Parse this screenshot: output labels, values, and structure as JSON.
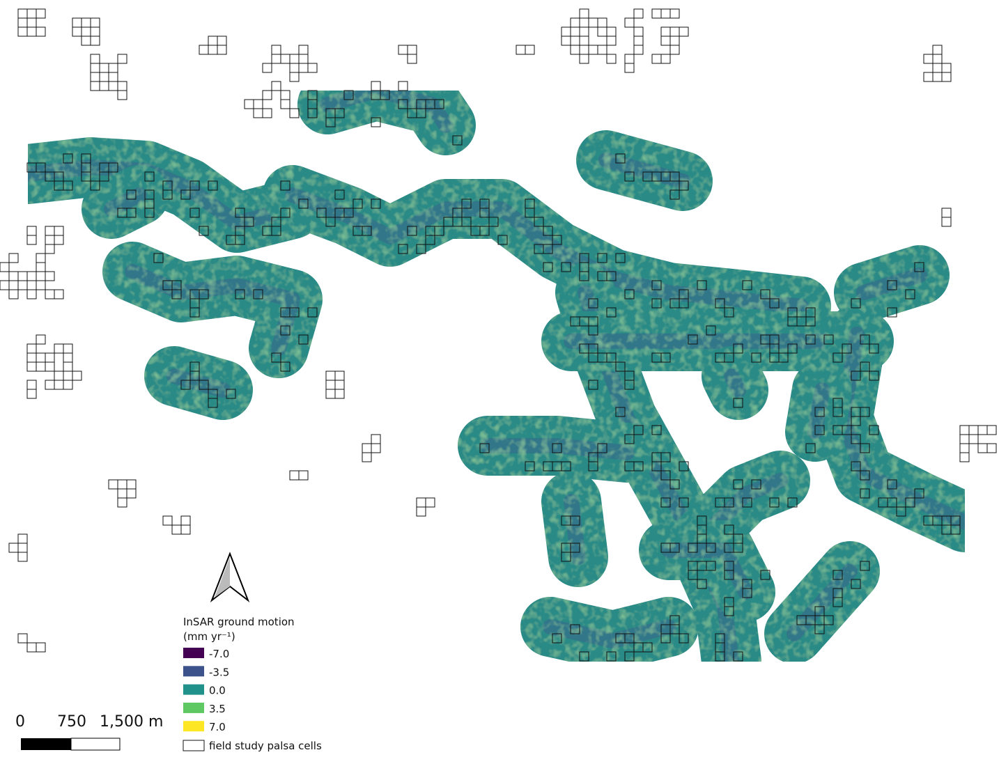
{
  "legend": {
    "title": "InSAR ground motion",
    "unit": "(mm  yr⁻¹)",
    "items": [
      {
        "label": "-7.0",
        "color": "#440154"
      },
      {
        "label": "-3.5",
        "color": "#3b528b"
      },
      {
        "label": "0.0",
        "color": "#21918c"
      },
      {
        "label": "3.5",
        "color": "#5ec962"
      },
      {
        "label": "7.0",
        "color": "#fde725"
      }
    ],
    "cells_label": "field study palsa cells"
  },
  "scale_bar": {
    "labels": [
      "0",
      "750",
      "1,500 m"
    ]
  }
}
